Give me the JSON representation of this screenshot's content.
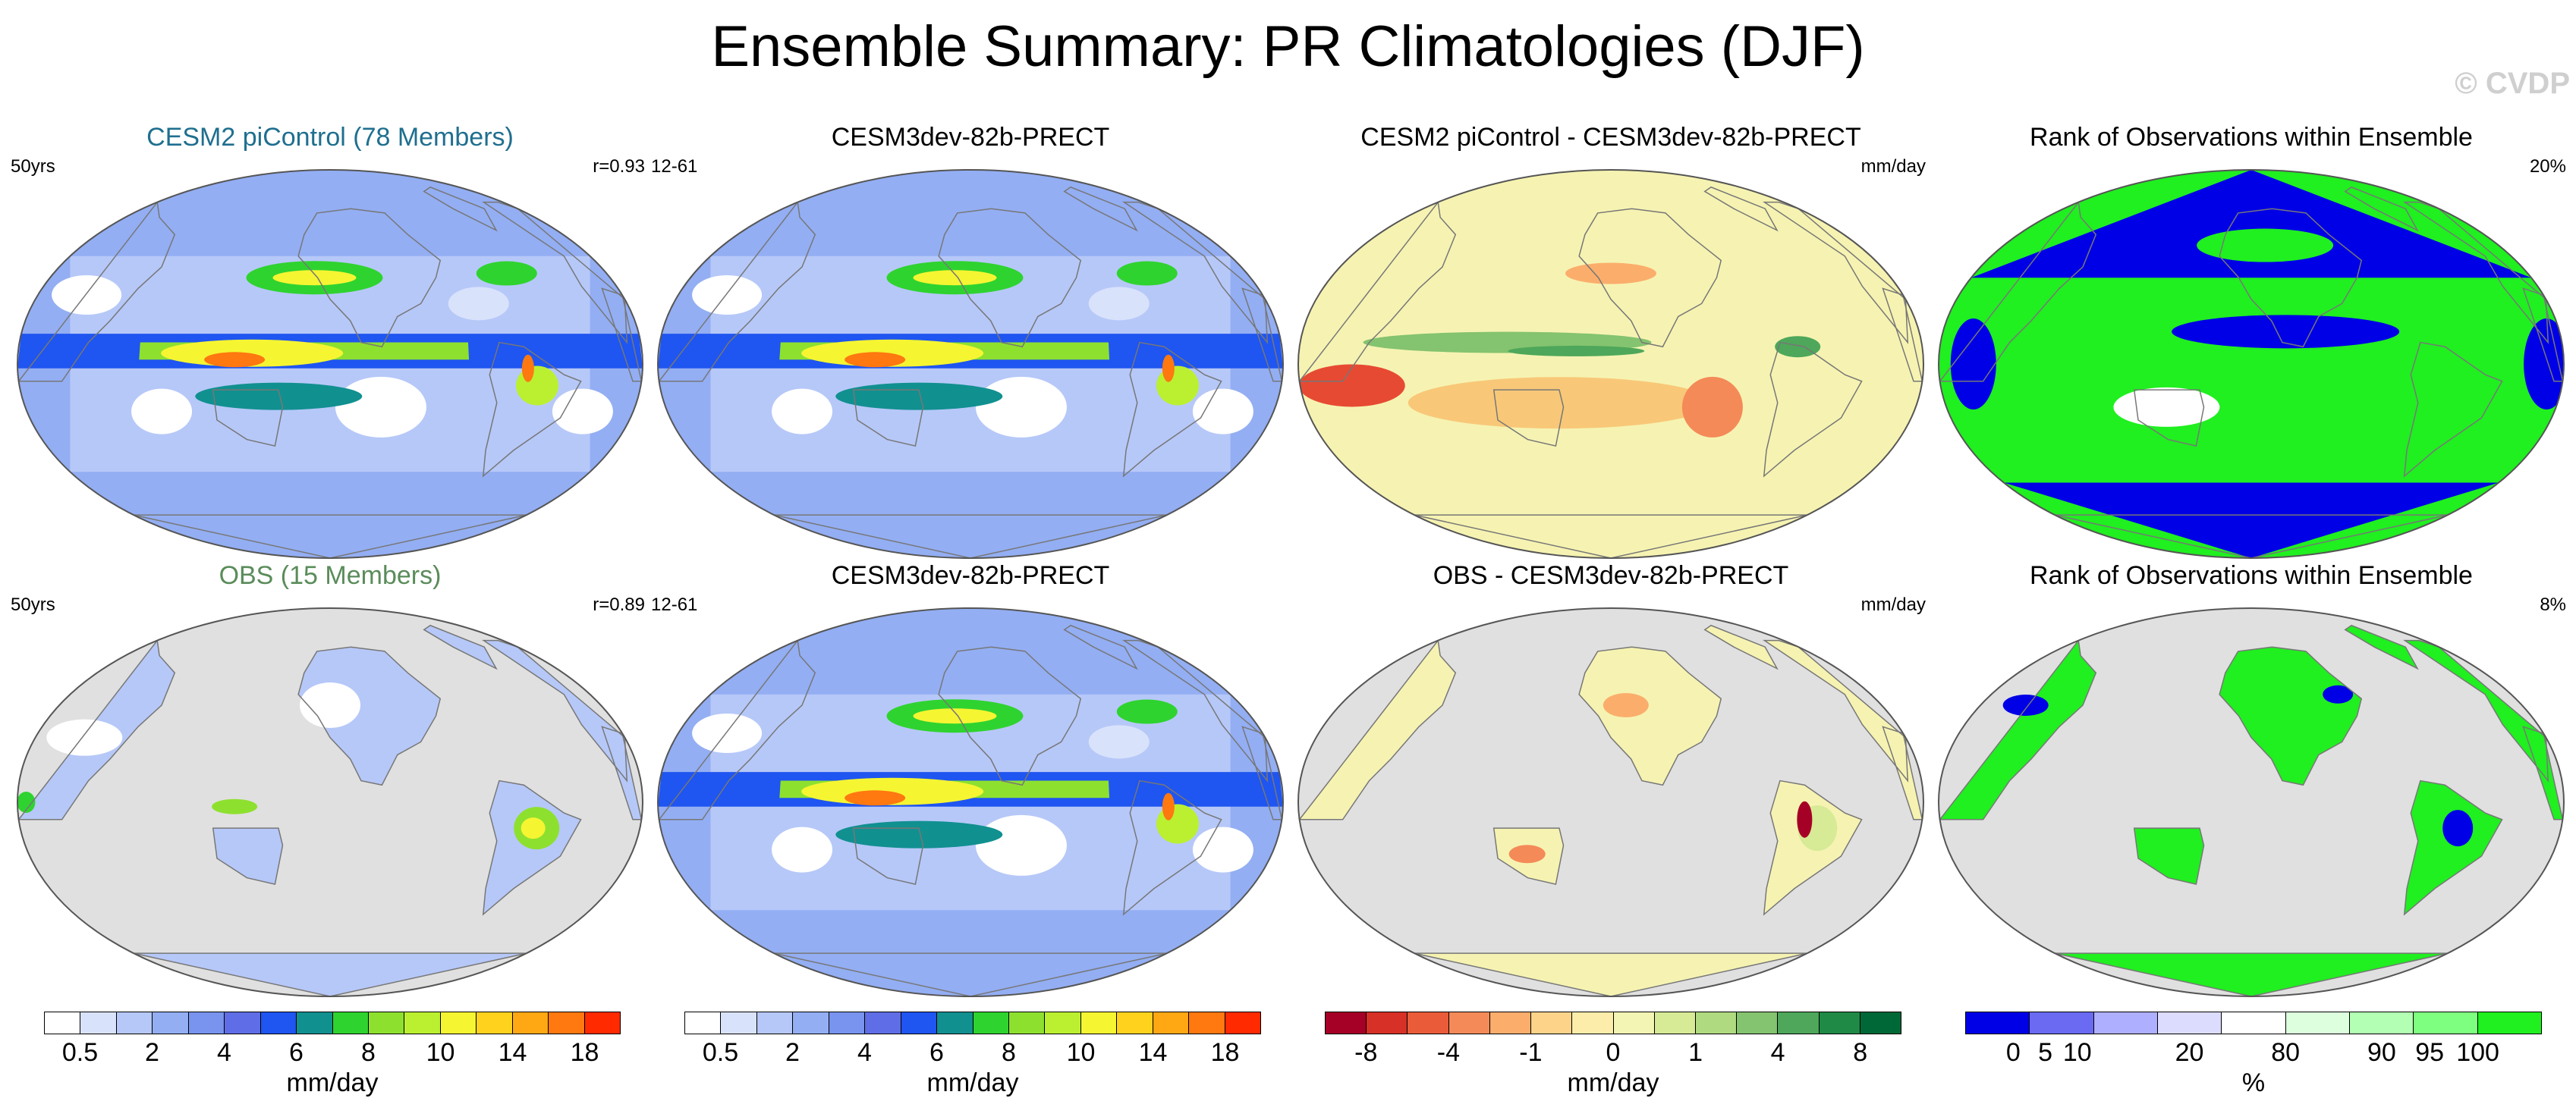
{
  "title": "Ensemble Summary: PR Climatologies (DJF)",
  "watermark": "© CVDP",
  "panels": [
    {
      "title": "CESM2 piControl (78 Members)",
      "left_label": "50yrs",
      "right_label": "r=0.93",
      "style": "model"
    },
    {
      "title": "CESM3dev-82b-PRECT",
      "left_label": "12-61",
      "right_label": "",
      "style": "model"
    },
    {
      "title": "CESM2 piControl - CESM3dev-82b-PRECT",
      "left_label": "",
      "right_label": "mm/day",
      "style": "diff_model"
    },
    {
      "title": "Rank of Observations within Ensemble",
      "left_label": "",
      "right_label": "20%",
      "style": "rank_global"
    },
    {
      "title": "OBS (15 Members)",
      "left_label": "50yrs",
      "right_label": "r=0.89",
      "style": "obs"
    },
    {
      "title": "CESM3dev-82b-PRECT",
      "left_label": "12-61",
      "right_label": "",
      "style": "model"
    },
    {
      "title": "OBS - CESM3dev-82b-PRECT",
      "left_label": "",
      "right_label": "mm/day",
      "style": "diff_obs"
    },
    {
      "title": "Rank of Observations within Ensemble",
      "left_label": "",
      "right_label": "8%",
      "style": "rank_land"
    }
  ],
  "colorbars": [
    {
      "unit": "mm/day",
      "colors": [
        "#ffffff",
        "#d9e2fb",
        "#b6c8f8",
        "#93aef3",
        "#7894ef",
        "#5f6ee6",
        "#1f55f0",
        "#119090",
        "#2fd32f",
        "#8ee02f",
        "#bbf030",
        "#f5f532",
        "#ffd21e",
        "#ffa814",
        "#ff7810",
        "#ff2a00"
      ],
      "ticks": [
        "0.5",
        "2",
        "4",
        "6",
        "8",
        "10",
        "14",
        "18"
      ]
    },
    {
      "unit": "mm/day",
      "colors": [
        "#ffffff",
        "#d9e2fb",
        "#b6c8f8",
        "#93aef3",
        "#7894ef",
        "#5f6ee6",
        "#1f55f0",
        "#119090",
        "#2fd32f",
        "#8ee02f",
        "#bbf030",
        "#f5f532",
        "#ffd21e",
        "#ffa814",
        "#ff7810",
        "#ff2a00"
      ],
      "ticks": [
        "0.5",
        "2",
        "4",
        "6",
        "8",
        "10",
        "14",
        "18"
      ]
    },
    {
      "unit": "mm/day",
      "colors": [
        "#a50026",
        "#d73027",
        "#ea5b3a",
        "#f48a58",
        "#fbae6c",
        "#fdd38a",
        "#fdedaa",
        "#f2f5b4",
        "#d7ea96",
        "#b0da80",
        "#84c36f",
        "#4ea75a",
        "#1f8a45",
        "#006837"
      ],
      "ticks": [
        "-8",
        "-4",
        "-1",
        "0",
        "1",
        "4",
        "8"
      ]
    },
    {
      "unit": "%",
      "colors": [
        "#0000e6",
        "#6a6af3",
        "#afafff",
        "#dcdcff",
        "#ffffff",
        "#ddffdd",
        "#b3ffb3",
        "#7fff7f",
        "#20ef20"
      ],
      "ticks": [
        "0",
        "5",
        "10",
        "20",
        "80",
        "90",
        "95",
        "100"
      ]
    }
  ]
}
